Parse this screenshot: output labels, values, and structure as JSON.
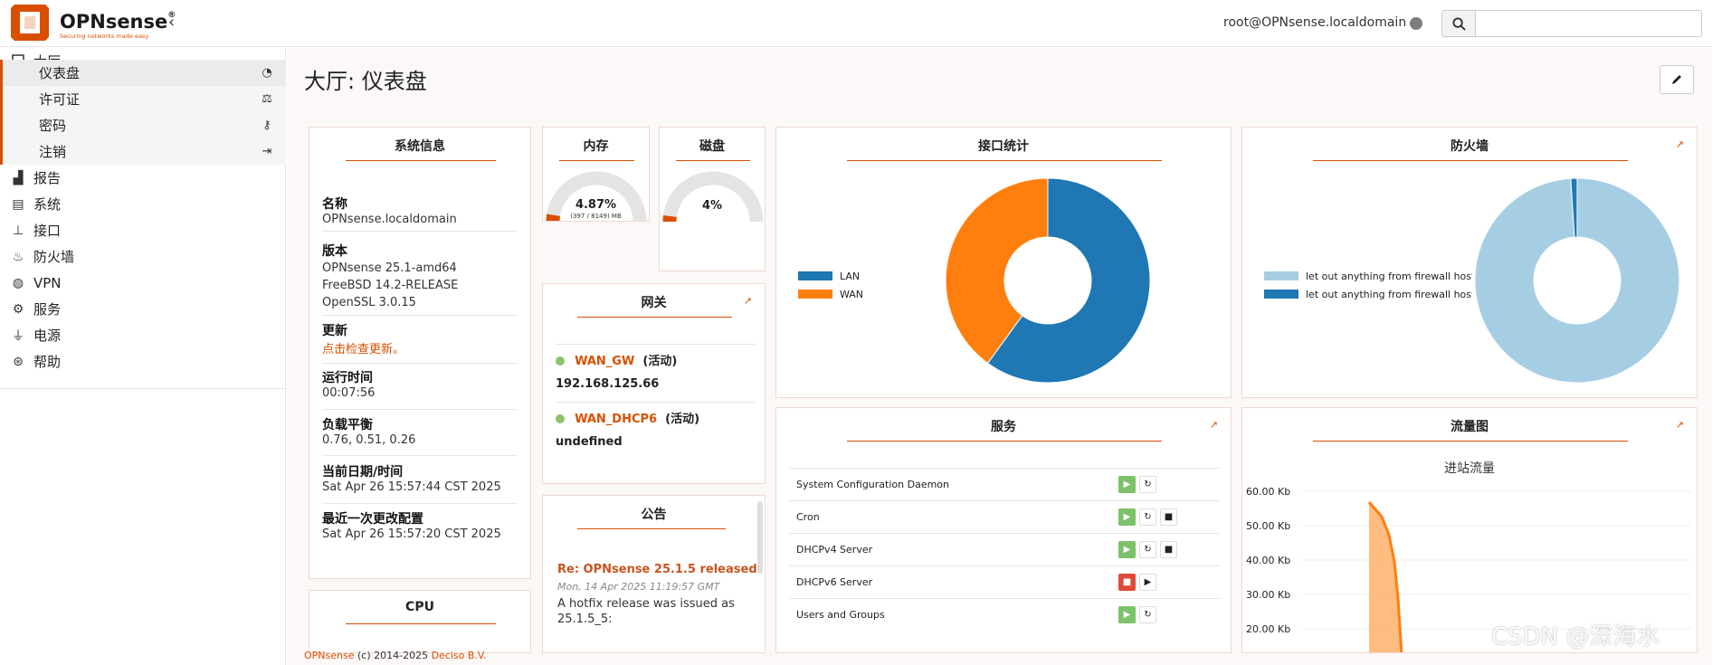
{
  "header": {
    "brand": "OPNsense",
    "brand_reg": "®",
    "tagline": "Securing networks made easy",
    "user": "root@OPNsense.localdomain",
    "search_placeholder": ""
  },
  "sidebar": {
    "section": "大厅",
    "subitems": [
      {
        "label": "仪表盘",
        "icon": "dashboard-icon",
        "active": true
      },
      {
        "label": "许可证",
        "icon": "balance-scale-icon",
        "active": false
      },
      {
        "label": "密码",
        "icon": "key-icon",
        "active": false
      },
      {
        "label": "注销",
        "icon": "sign-out-icon",
        "active": false
      }
    ],
    "items": [
      {
        "label": "报告",
        "icon": "chart-icon"
      },
      {
        "label": "系统",
        "icon": "server-icon"
      },
      {
        "label": "接口",
        "icon": "sitemap-icon"
      },
      {
        "label": "防火墙",
        "icon": "fire-icon"
      },
      {
        "label": "VPN",
        "icon": "globe-icon"
      },
      {
        "label": "服务",
        "icon": "gear-icon"
      },
      {
        "label": "电源",
        "icon": "plug-icon"
      },
      {
        "label": "帮助",
        "icon": "lifebuoy-icon"
      }
    ]
  },
  "page": {
    "title": "大厅: 仪表盘"
  },
  "sysinfo": {
    "title": "系统信息",
    "name_label": "名称",
    "name_value": "OPNsense.localdomain",
    "version_label": "版本",
    "version_values": [
      "OPNsense 25.1-amd64",
      "FreeBSD 14.2-RELEASE",
      "OpenSSL 3.0.15"
    ],
    "update_label": "更新",
    "update_link": "点击检查更新。",
    "uptime_label": "运行时间",
    "uptime_value": "00:07:56",
    "load_label": "负载平衡",
    "load_value": "0.76, 0.51, 0.26",
    "datetime_label": "当前日期/时间",
    "datetime_value": "Sat Apr 26 15:57:44 CST 2025",
    "lastchange_label": "最近一次更改配置",
    "lastchange_value": "Sat Apr 26 15:57:20 CST 2025"
  },
  "memory": {
    "title": "内存",
    "percent_text": "4.87%",
    "detail": "(397 / 8149) MB",
    "percent": 4.87
  },
  "disk": {
    "title": "磁盘",
    "percent_text": "4%",
    "percent": 4
  },
  "gateway": {
    "title": "网关",
    "items": [
      {
        "name": "WAN_GW",
        "status": "(活动)",
        "address": "192.168.125.66",
        "color": "#8cc36b"
      },
      {
        "name": "WAN_DHCP6",
        "status": "(活动)",
        "address": "undefined",
        "color": "#8cc36b"
      }
    ]
  },
  "announcements": {
    "title": "公告",
    "item_title": "Re: OPNsense 25.1.5 released",
    "item_date": "Mon, 14 Apr 2025 11:19:57 GMT",
    "item_text": "A hotfix release was issued as 25.1.5_5:"
  },
  "cpu": {
    "title": "CPU"
  },
  "interface_stats": {
    "title": "接口统计",
    "legend": [
      {
        "label": "LAN",
        "color": "#1f77b4"
      },
      {
        "label": "WAN",
        "color": "#ff7f0e"
      }
    ],
    "values": [
      0.6,
      0.4
    ]
  },
  "firewall": {
    "title": "防火墙",
    "legend": [
      {
        "label": "let out anything from firewall host it",
        "color": "#a6cee3"
      },
      {
        "label": "let out anything from firewall host it",
        "color": "#1f78b4"
      }
    ],
    "values": [
      0.99,
      0.01
    ]
  },
  "services": {
    "title": "服务",
    "items": [
      {
        "name": "System Configuration Daemon",
        "state": "running",
        "stop": false
      },
      {
        "name": "Cron",
        "state": "running",
        "stop": true
      },
      {
        "name": "DHCPv4 Server",
        "state": "running",
        "stop": true
      },
      {
        "name": "DHCPv6 Server",
        "state": "stopped",
        "stop": false
      },
      {
        "name": "Users and Groups",
        "state": "running",
        "stop": false
      }
    ]
  },
  "traffic": {
    "title": "流量图",
    "subtitle": "进站流量",
    "yticks": [
      "60.00 Kb",
      "50.00 Kb",
      "40.00 Kb",
      "30.00 Kb",
      "20.00 Kb"
    ],
    "color": "#ff7f0e"
  },
  "footer": {
    "brand": "OPNsense",
    "text": " (c) 2014-2025 ",
    "company": "Deciso B.V."
  },
  "watermark": "CSDN @深海水"
}
